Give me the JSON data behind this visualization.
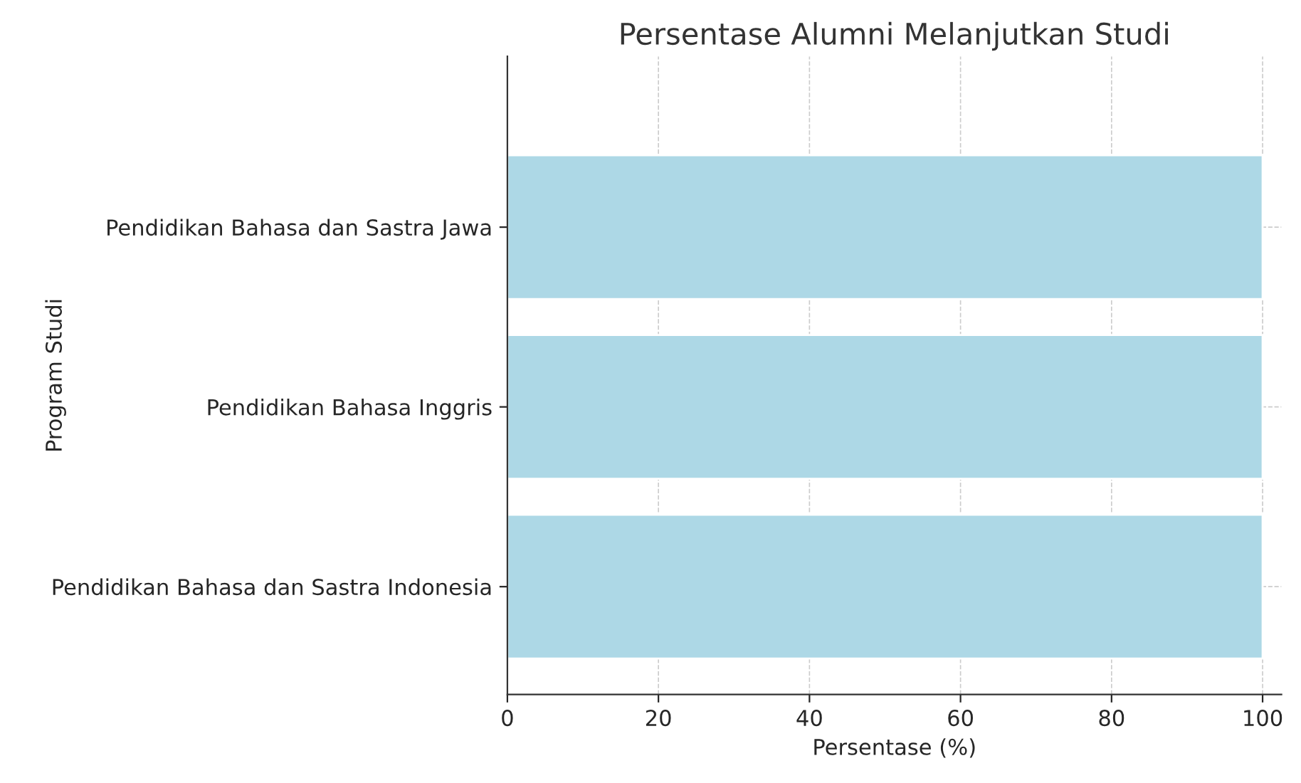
{
  "chart_data": {
    "type": "bar",
    "orientation": "horizontal",
    "title": "Persentase Alumni Melanjutkan Studi",
    "xlabel": "Persentase (%)",
    "ylabel": "Program Studi",
    "categories": [
      "Pendidikan Bahasa dan Sastra Jawa",
      "Pendidikan Bahasa Inggris",
      "Pendidikan Bahasa dan Sastra Indonesia"
    ],
    "values": [
      100,
      100,
      100
    ],
    "color": "#add8e6",
    "xlim": [
      0,
      102.5
    ],
    "xticks": [
      0,
      20,
      40,
      60,
      80,
      100
    ],
    "grid": true
  }
}
